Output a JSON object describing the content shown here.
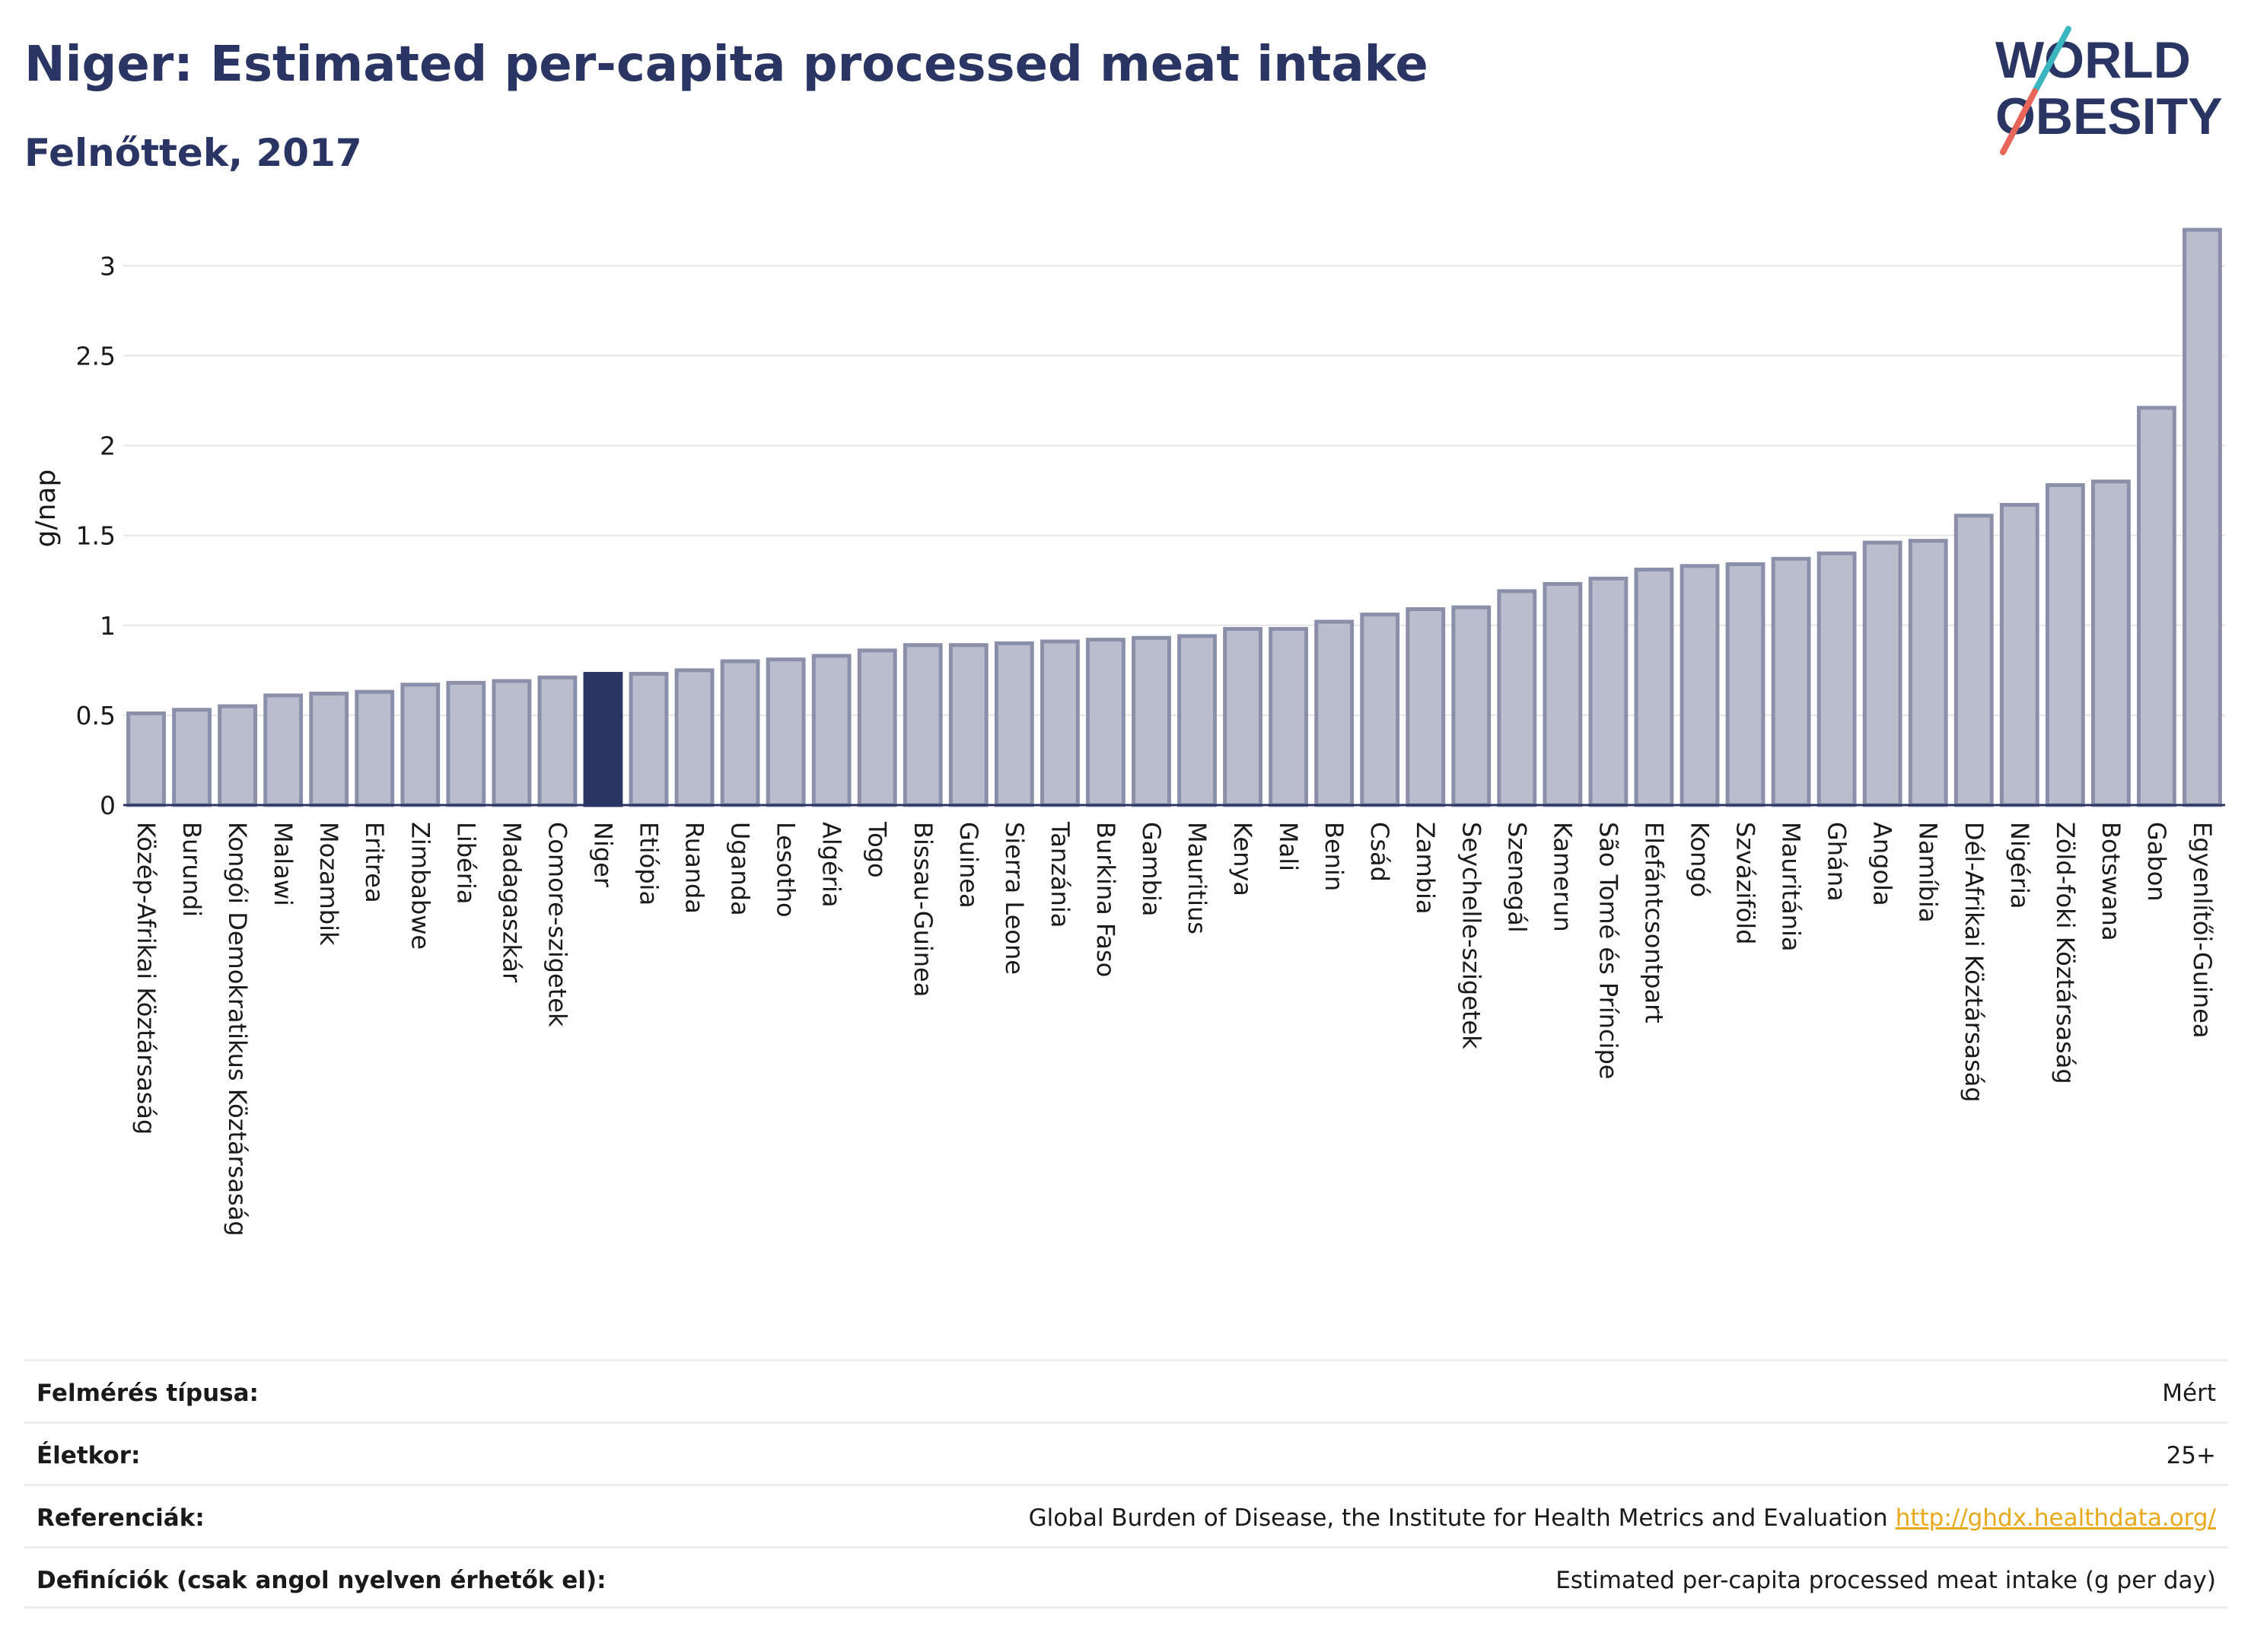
{
  "header": {
    "title": "Niger: Estimated per-capita processed meat intake",
    "subtitle": "Felnőttek, 2017",
    "logo_line1": "WORLD",
    "logo_line2": "OBESITY"
  },
  "colors": {
    "title": "#2a3563",
    "bar": "#b9bdcc",
    "bar_stroke": "#8a90aa",
    "highlight": "#2a3563",
    "grid": "#e6e6e6",
    "link": "#e9a91c",
    "logo_teal": "#3bb6c0",
    "logo_coral": "#e8655a"
  },
  "chart_data": {
    "type": "bar",
    "title": "Niger: Estimated per-capita processed meat intake",
    "subtitle": "Felnőttek, 2017",
    "xlabel": "",
    "ylabel": "g/nap",
    "ylim": [
      0,
      3.2
    ],
    "yticks": [
      0,
      0.5,
      1,
      1.5,
      2,
      2.5,
      3
    ],
    "ytick_labels": [
      "0",
      "0.5",
      "1",
      "1.5",
      "2",
      "2.5",
      "3"
    ],
    "grid": true,
    "highlight": "Niger",
    "categories": [
      "Közép-Afrikai Köztársaság",
      "Burundi",
      "Kongói Demokratikus Köztársaság",
      "Malawi",
      "Mozambik",
      "Eritrea",
      "Zimbabwe",
      "Libéria",
      "Madagaszkár",
      "Comore-szigetek",
      "Niger",
      "Etiópia",
      "Ruanda",
      "Uganda",
      "Lesotho",
      "Algéria",
      "Togo",
      "Bissau-Guinea",
      "Guinea",
      "Sierra Leone",
      "Tanzánia",
      "Burkina Faso",
      "Gambia",
      "Mauritius",
      "Kenya",
      "Mali",
      "Benin",
      "Csád",
      "Zambia",
      "Seychelle-szigetek",
      "Szenegál",
      "Kamerun",
      "São Tomé és Príncipe",
      "Elefántcsontpart",
      "Kongó",
      "Szváziföld",
      "Mauritánia",
      "Ghána",
      "Angola",
      "Namíbia",
      "Dél-Afrikai Köztársaság",
      "Nigéria",
      "Zöld-foki Köztársaság",
      "Botswana",
      "Gabon",
      "Egyenlítői-Guinea"
    ],
    "values": [
      0.51,
      0.53,
      0.55,
      0.61,
      0.62,
      0.63,
      0.67,
      0.68,
      0.69,
      0.71,
      0.73,
      0.73,
      0.75,
      0.8,
      0.81,
      0.83,
      0.86,
      0.89,
      0.89,
      0.9,
      0.91,
      0.92,
      0.93,
      0.94,
      0.98,
      0.98,
      1.02,
      1.06,
      1.09,
      1.1,
      1.19,
      1.23,
      1.26,
      1.31,
      1.33,
      1.34,
      1.37,
      1.4,
      1.46,
      1.47,
      1.61,
      1.67,
      1.78,
      1.8,
      2.21,
      3.2
    ]
  },
  "meta": {
    "rows": [
      {
        "label": "Felmérés típusa:",
        "value": "Mért",
        "link": ""
      },
      {
        "label": "Életkor:",
        "value": "25+",
        "link": ""
      },
      {
        "label": "Referenciák:",
        "value": "Global Burden of Disease, the Institute for Health Metrics and Evaluation",
        "link": "http://ghdx.healthdata.org/"
      },
      {
        "label": "Definíciók (csak angol nyelven érhetők el):",
        "value": "Estimated per-capita processed meat intake (g per day)",
        "link": ""
      }
    ]
  }
}
